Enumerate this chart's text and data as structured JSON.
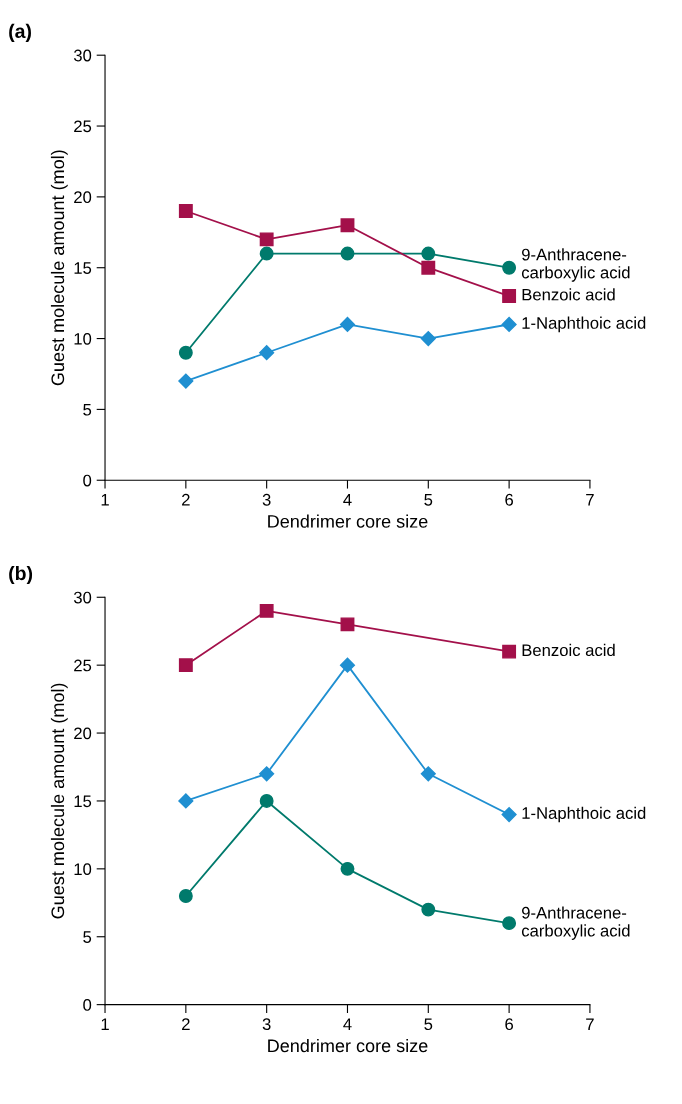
{
  "chart_data": [
    {
      "type": "line",
      "annotations": [
        "(a)"
      ],
      "xlabel": "Dendrimer core size",
      "ylabel": "Guest molecule amount (mol)",
      "xlim": [
        1,
        7
      ],
      "xticks": [
        1,
        2,
        3,
        4,
        5,
        6,
        7
      ],
      "ylim": [
        0,
        30
      ],
      "yticks": [
        0,
        5,
        10,
        15,
        20,
        25,
        30
      ],
      "grid": false,
      "legend": false,
      "series": [
        {
          "name": "9-Anthracene-\ncarboxylic acid",
          "color": "#007a6c",
          "marker": "circle",
          "x": [
            2,
            3,
            4,
            5,
            6
          ],
          "values": [
            9,
            16,
            16,
            16,
            15
          ]
        },
        {
          "name": "Benzoic acid",
          "color": "#a3104a",
          "marker": "square",
          "x": [
            2,
            3,
            4,
            5,
            6
          ],
          "values": [
            19,
            17,
            18,
            15,
            13
          ]
        },
        {
          "name": "1-Naphthoic acid",
          "color": "#1f8fd1",
          "marker": "diamond",
          "x": [
            2,
            3,
            4,
            5,
            6
          ],
          "values": [
            7,
            9,
            11,
            10,
            11
          ]
        }
      ]
    },
    {
      "type": "line",
      "annotations": [
        "(b)"
      ],
      "xlabel": "Dendrimer core size",
      "ylabel": "Guest molecule amount (mol)",
      "xlim": [
        1,
        7
      ],
      "xticks": [
        1,
        2,
        3,
        4,
        5,
        6,
        7
      ],
      "ylim": [
        0,
        30
      ],
      "yticks": [
        0,
        5,
        10,
        15,
        20,
        25,
        30
      ],
      "grid": false,
      "legend": false,
      "series": [
        {
          "name": "Benzoic acid",
          "color": "#a3104a",
          "marker": "square",
          "x": [
            2,
            3,
            4,
            6
          ],
          "values": [
            25,
            29,
            28,
            26
          ]
        },
        {
          "name": "1-Naphthoic acid",
          "color": "#1f8fd1",
          "marker": "diamond",
          "x": [
            2,
            3,
            4,
            5,
            6
          ],
          "values": [
            15,
            17,
            25,
            17,
            14
          ]
        },
        {
          "name": "9-Anthracene-\ncarboxylic acid",
          "color": "#007a6c",
          "marker": "circle",
          "x": [
            2,
            3,
            4,
            5,
            6
          ],
          "values": [
            8,
            15,
            10,
            7,
            6
          ]
        }
      ]
    }
  ]
}
